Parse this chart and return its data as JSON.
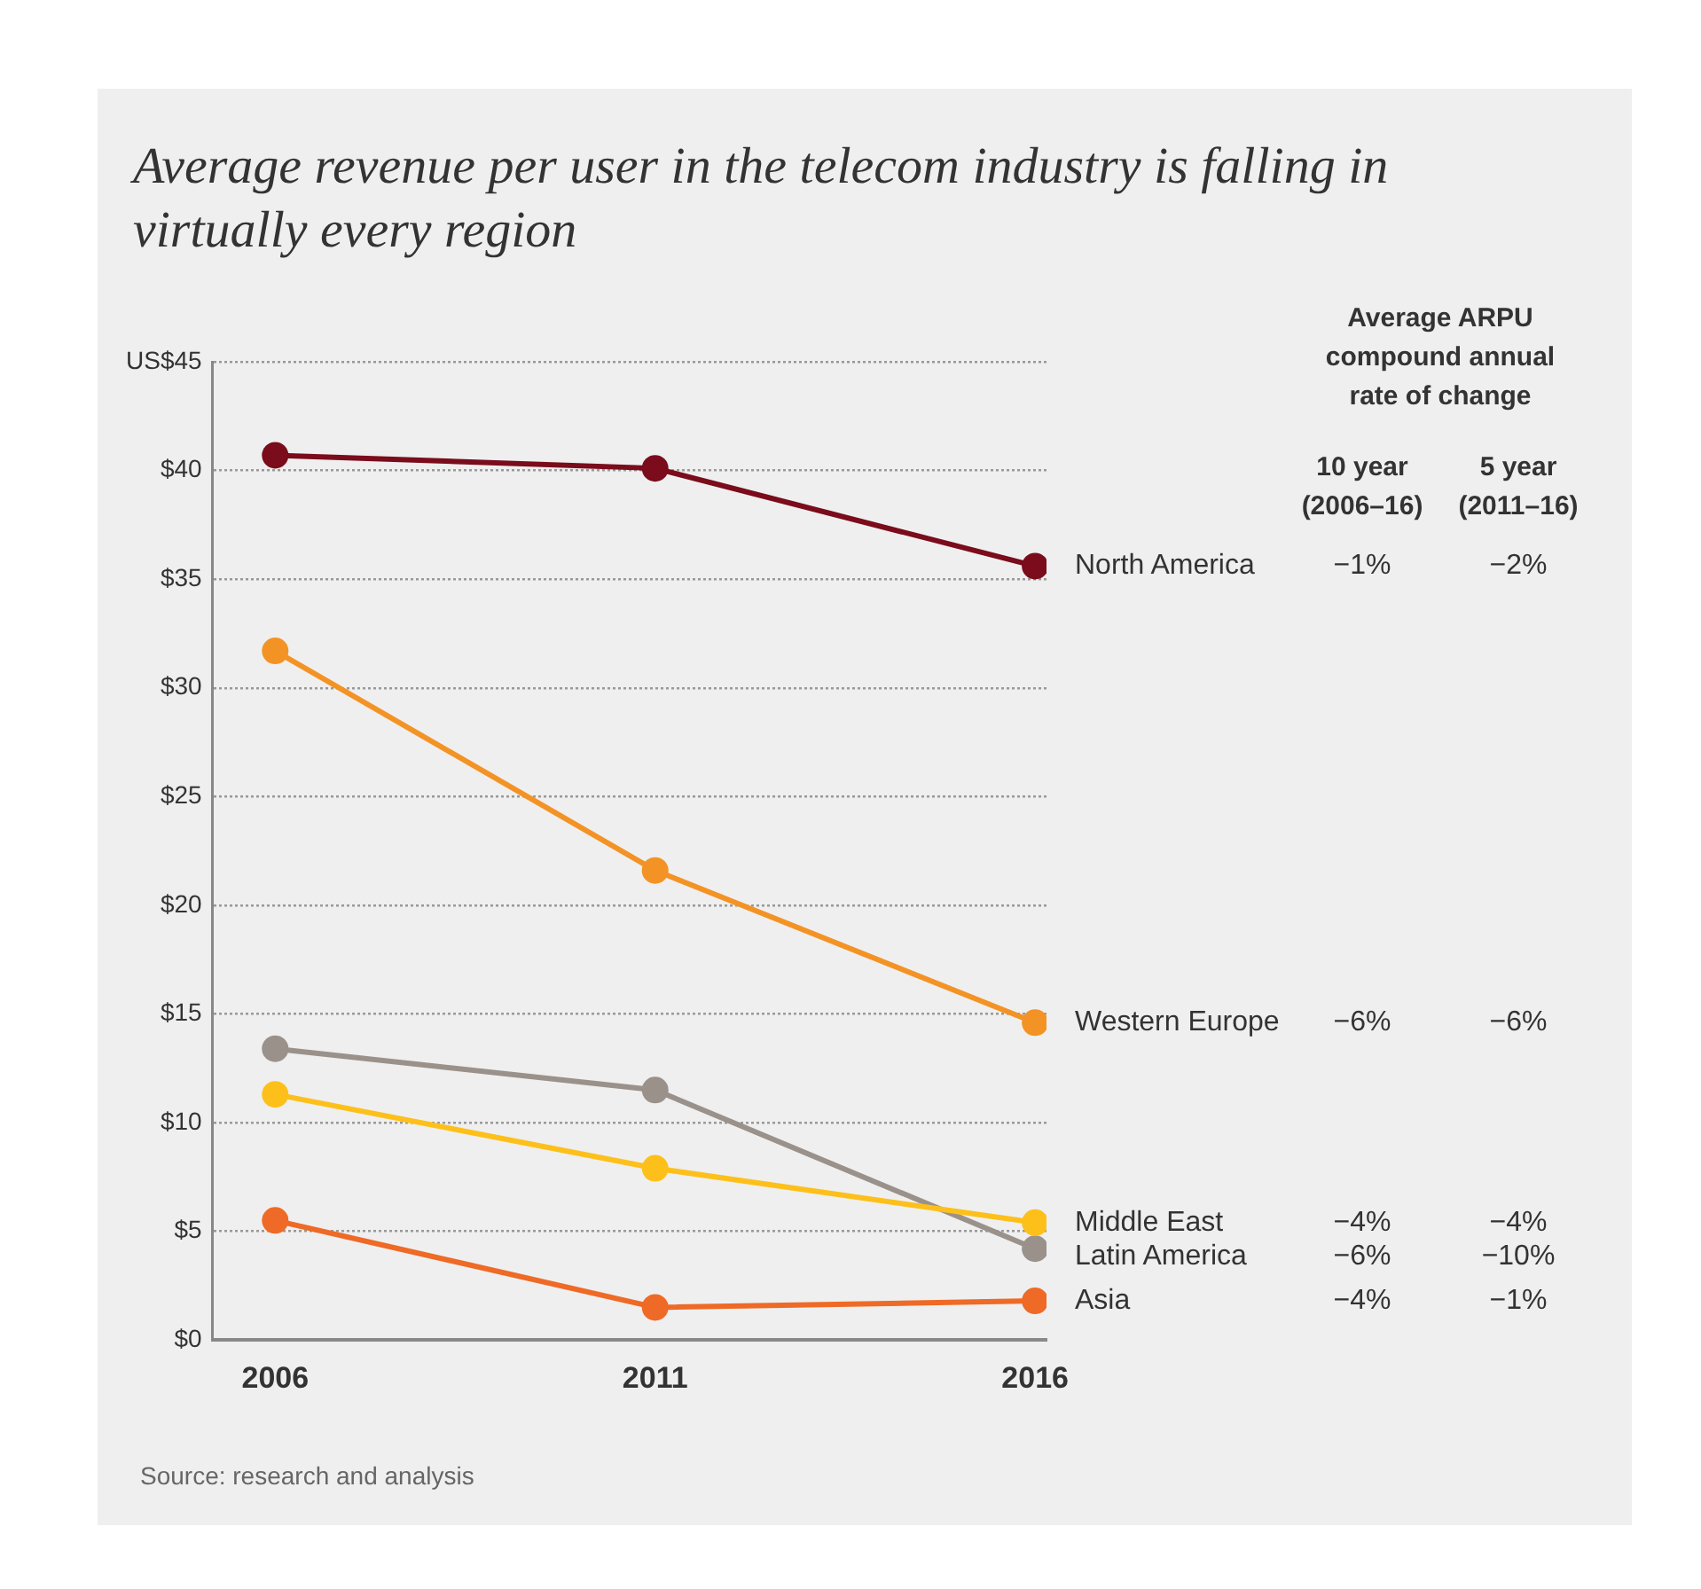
{
  "chart_data": {
    "type": "line",
    "title": "Average revenue per user in the telecom industry is falling in virtually every region",
    "categories": [
      "2006",
      "2011",
      "2016"
    ],
    "series": [
      {
        "name": "North America",
        "color": "#7a0c1c",
        "values": [
          40.7,
          40.1,
          35.6
        ]
      },
      {
        "name": "Western Europe",
        "color": "#f39325",
        "values": [
          31.7,
          21.6,
          14.6
        ]
      },
      {
        "name": "Middle East",
        "color": "#fdc01b",
        "values": [
          11.3,
          7.9,
          5.4
        ]
      },
      {
        "name": "Latin America",
        "color": "#9a918b",
        "values": [
          13.4,
          11.5,
          4.2
        ]
      },
      {
        "name": "Asia",
        "color": "#ee6a26",
        "values": [
          5.5,
          1.5,
          1.8
        ]
      }
    ],
    "ylim": [
      0,
      45
    ],
    "yticks": [
      {
        "value": 0,
        "label": "$0"
      },
      {
        "value": 5,
        "label": "$5"
      },
      {
        "value": 10,
        "label": "$10"
      },
      {
        "value": 15,
        "label": "$15"
      },
      {
        "value": 20,
        "label": "$20"
      },
      {
        "value": 25,
        "label": "$25"
      },
      {
        "value": 30,
        "label": "$30"
      },
      {
        "value": 35,
        "label": "$35"
      },
      {
        "value": 40,
        "label": "$40"
      },
      {
        "value": 45,
        "label": "US$45"
      }
    ],
    "grid": "y",
    "legend": false,
    "marker": "circle",
    "line_style": "solid",
    "annotations": [
      "Average ARPU compound annual rate of change",
      "10 year (2006–16)",
      "5 year (2011–16)",
      "−1%",
      "−2%",
      "−6%",
      "−6%",
      "−4%",
      "−4%",
      "−6%",
      "−10%",
      "−4%",
      "−1%",
      "Source: research and analysis"
    ]
  }
}
